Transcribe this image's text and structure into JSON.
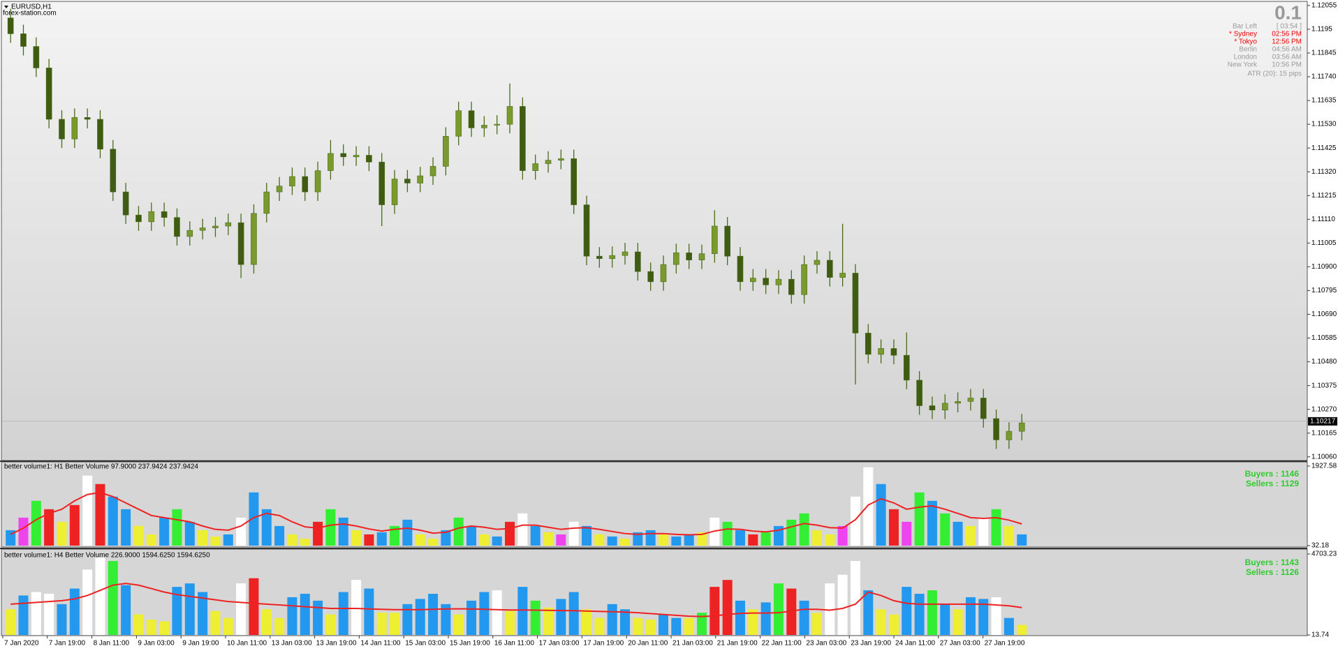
{
  "header": {
    "symbol": "EURUSD,H1",
    "source": "forex-station.com",
    "spread": "0.1",
    "info": [
      [
        "Bar Left",
        "[ 03:54 ]"
      ],
      [
        "* Sydney",
        "02:56 PM"
      ],
      [
        "* Tokyo",
        "12:56 PM"
      ],
      [
        "Berlin",
        "04:56 AM"
      ],
      [
        "London",
        "03:56 AM"
      ],
      [
        "New York",
        "10:56 PM"
      ]
    ],
    "atr": "ATR (20): 15 pips"
  },
  "time_axis": {
    "labels": [
      "7 Jan 2020",
      "7 Jan 19:00",
      "8 Jan 11:00",
      "9 Jan 03:00",
      "9 Jan 19:00",
      "10 Jan 11:00",
      "13 Jan 03:00",
      "13 Jan 19:00",
      "14 Jan 11:00",
      "15 Jan 03:00",
      "15 Jan 19:00",
      "16 Jan 11:00",
      "17 Jan 03:00",
      "17 Jan 19:00",
      "20 Jan 11:00",
      "21 Jan 03:00",
      "21 Jan 19:00",
      "22 Jan 11:00",
      "23 Jan 03:00",
      "23 Jan 19:00",
      "24 Jan 11:00",
      "27 Jan 03:00",
      "27 Jan 19:00"
    ]
  },
  "chart_data": [
    {
      "type": "candlestick",
      "up_color": "#7a9a2e",
      "down_color": "#3f5c12",
      "wick_color": "#4a6a1a",
      "ylim": [
        1.1005,
        1.1207
      ],
      "yticks": [
        1.12055,
        1.1195,
        1.11845,
        {
          "value": 1.1174,
          "label": "1.11740"
        },
        1.11635,
        {
          "value": 1.1153,
          "label": "1.11530"
        },
        1.11425,
        {
          "value": 1.1132,
          "label": "1.11320"
        },
        1.11215,
        {
          "value": 1.1111,
          "label": "1.11110"
        },
        1.11005,
        {
          "value": 1.109,
          "label": "1.10900"
        },
        1.10795,
        {
          "value": 1.1069,
          "label": "1.10690"
        },
        1.10585,
        {
          "value": 1.1048,
          "label": "1.10480"
        },
        1.10375,
        {
          "value": 1.1027,
          "label": "1.10270"
        },
        1.10165,
        {
          "value": 1.1006,
          "label": "1.10060"
        }
      ],
      "current_price": 1.10217,
      "open": [
        1.12,
        1.1193,
        1.11874,
        1.11779,
        1.11552,
        1.11465,
        1.1156,
        1.11552,
        1.1142,
        1.11231,
        1.11129,
        1.11099,
        1.11144,
        1.11118,
        1.11034,
        1.11061,
        1.11072,
        1.1108,
        1.11095,
        1.1091,
        1.11136,
        1.11231,
        1.11257,
        1.11299,
        1.11231,
        1.11325,
        1.11401,
        1.11386,
        1.11393,
        1.11363,
        1.11174,
        1.11288,
        1.1127,
        1.11302,
        1.11344,
        1.11477,
        1.1159,
        1.11514,
        1.11526,
        1.1153,
        1.11609,
        1.11325,
        1.11356,
        1.11371,
        1.11378,
        1.11174,
        1.10947,
        1.10936,
        1.1095,
        1.10966,
        1.10879,
        1.10834,
        1.1091,
        1.10962,
        1.1093,
        1.10958,
        1.1108,
        1.10947,
        1.10834,
        1.1085,
        1.1082,
        1.10845,
        1.10777,
        1.1091,
        1.10929,
        1.10853,
        1.10872,
        1.10607,
        1.10513,
        1.10539,
        1.10509,
        1.10399,
        1.10286,
        1.10267,
        1.10297,
        1.10305,
        1.1032,
        1.10229,
        1.10135,
        1.10173
      ],
      "high": [
        1.1204,
        1.1197,
        1.11914,
        1.11819,
        1.11592,
        1.116,
        1.116,
        1.11592,
        1.1146,
        1.11271,
        1.11169,
        1.11184,
        1.11184,
        1.11158,
        1.11101,
        1.11112,
        1.1112,
        1.11135,
        1.11135,
        1.11176,
        1.11271,
        1.11297,
        1.11339,
        1.11339,
        1.11365,
        1.1146,
        1.11441,
        1.11433,
        1.11433,
        1.11403,
        1.11328,
        1.11328,
        1.11342,
        1.11384,
        1.11517,
        1.1163,
        1.1163,
        1.11566,
        1.1157,
        1.1171,
        1.11649,
        1.11396,
        1.11411,
        1.11418,
        1.11418,
        1.11214,
        1.10987,
        1.1099,
        1.11006,
        1.11006,
        1.10919,
        1.1095,
        1.11002,
        1.11002,
        1.10998,
        1.1115,
        1.1112,
        1.10987,
        1.1089,
        1.1089,
        1.10885,
        1.10885,
        1.1095,
        1.10969,
        1.10969,
        1.1109,
        1.10912,
        1.10647,
        1.10579,
        1.10579,
        1.1061,
        1.10439,
        1.10326,
        1.10337,
        1.10345,
        1.1036,
        1.1036,
        1.10269,
        1.10213,
        1.1025
      ],
      "low": [
        1.1189,
        1.11834,
        1.11739,
        1.11512,
        1.11425,
        1.11425,
        1.11512,
        1.1138,
        1.11191,
        1.11089,
        1.11059,
        1.11059,
        1.11078,
        1.10994,
        1.10994,
        1.11021,
        1.11032,
        1.1104,
        1.1085,
        1.1087,
        1.11096,
        1.11191,
        1.11217,
        1.11191,
        1.11191,
        1.11285,
        1.11346,
        1.11346,
        1.11323,
        1.1108,
        1.11134,
        1.1123,
        1.1123,
        1.11262,
        1.11304,
        1.11437,
        1.11474,
        1.11474,
        1.11486,
        1.1149,
        1.11285,
        1.11285,
        1.11316,
        1.11331,
        1.11134,
        1.10907,
        1.10896,
        1.10896,
        1.1091,
        1.10839,
        1.10794,
        1.10794,
        1.1087,
        1.1089,
        1.1089,
        1.10918,
        1.10907,
        1.10794,
        1.10794,
        1.1078,
        1.1078,
        1.10737,
        1.10737,
        1.1087,
        1.10813,
        1.10813,
        1.1038,
        1.10473,
        1.10473,
        1.10469,
        1.10359,
        1.10246,
        1.10227,
        1.10227,
        1.10257,
        1.10265,
        1.10189,
        1.10095,
        1.10095,
        1.10133
      ],
      "close": [
        1.1193,
        1.11874,
        1.11779,
        1.11552,
        1.11465,
        1.1156,
        1.11552,
        1.1142,
        1.11231,
        1.11129,
        1.11099,
        1.11144,
        1.11118,
        1.11034,
        1.11061,
        1.11072,
        1.1108,
        1.11095,
        1.1091,
        1.11136,
        1.11231,
        1.11257,
        1.11299,
        1.11231,
        1.11325,
        1.11401,
        1.11386,
        1.11393,
        1.11363,
        1.11174,
        1.11288,
        1.1127,
        1.11302,
        1.11344,
        1.11477,
        1.1159,
        1.11514,
        1.11526,
        1.1153,
        1.11609,
        1.11325,
        1.11356,
        1.11371,
        1.11378,
        1.11174,
        1.10947,
        1.10936,
        1.1095,
        1.10966,
        1.10879,
        1.10834,
        1.1091,
        1.10962,
        1.1093,
        1.10958,
        1.1108,
        1.10947,
        1.10834,
        1.1085,
        1.1082,
        1.10845,
        1.10777,
        1.1091,
        1.10929,
        1.10853,
        1.10872,
        1.10607,
        1.10513,
        1.10539,
        1.10509,
        1.10399,
        1.10286,
        1.10267,
        1.10297,
        1.10305,
        1.1032,
        1.10229,
        1.10135,
        1.10173,
        1.1021
      ]
    },
    {
      "type": "bar",
      "title": "better volume1: H1 Better Volume 97.9000 237.9424 237.9424",
      "buyers": "Buyers : 1146",
      "sellers": "Sellers : 1129",
      "ylim": [
        32.18,
        1927.58
      ],
      "yticks": [
        1927.58,
        32.18
      ],
      "ma_color": "#e22",
      "values": [
        400,
        700,
        1100,
        900,
        600,
        1000,
        1700,
        1500,
        1200,
        900,
        500,
        300,
        700,
        900,
        600,
        400,
        250,
        300,
        700,
        1300,
        900,
        500,
        300,
        200,
        600,
        900,
        700,
        400,
        300,
        350,
        500,
        650,
        300,
        200,
        400,
        700,
        500,
        300,
        250,
        600,
        800,
        500,
        350,
        300,
        600,
        500,
        300,
        250,
        200,
        350,
        400,
        300,
        250,
        300,
        350,
        700,
        600,
        400,
        300,
        350,
        500,
        650,
        800,
        400,
        300,
        500,
        1200,
        1900,
        1500,
        900,
        600,
        1300,
        1100,
        800,
        600,
        500,
        700,
        900,
        500,
        300
      ],
      "bar_colors": [
        "#29e",
        "#e4e",
        "#3e3",
        "#e22",
        "#ee3",
        "#e22",
        "#fff",
        "#e22",
        "#29e",
        "#29e",
        "#ee3",
        "#ee3",
        "#29e",
        "#3e3",
        "#29e",
        "#ee3",
        "#ee3",
        "#29e",
        "#fff",
        "#29e",
        "#29e",
        "#29e",
        "#ee3",
        "#ee3",
        "#e22",
        "#3e3",
        "#29e",
        "#ee3",
        "#e22",
        "#29e",
        "#3e3",
        "#29e",
        "#ee3",
        "#ee3",
        "#29e",
        "#3e3",
        "#29e",
        "#ee3",
        "#29e",
        "#e22",
        "#fff",
        "#29e",
        "#ee3",
        "#e4e",
        "#fff",
        "#29e",
        "#ee3",
        "#29e",
        "#ee3",
        "#29e",
        "#29e",
        "#ee3",
        "#29e",
        "#29e",
        "#ee3",
        "#fff",
        "#3e3",
        "#29e",
        "#e22",
        "#3e3",
        "#29e",
        "#3e3",
        "#3e3",
        "#ee3",
        "#ee3",
        "#e4e",
        "#fff",
        "#fff",
        "#29e",
        "#e22",
        "#e4e",
        "#3e3",
        "#29e",
        "#3e3",
        "#29e",
        "#ee3",
        "#fff",
        "#3e3",
        "#ee3",
        "#29e"
      ],
      "ma": [
        300,
        450,
        650,
        800,
        900,
        1100,
        1250,
        1300,
        1200,
        1050,
        900,
        750,
        700,
        650,
        600,
        500,
        420,
        400,
        500,
        700,
        800,
        750,
        600,
        480,
        450,
        520,
        550,
        500,
        430,
        380,
        420,
        450,
        400,
        330,
        350,
        450,
        500,
        470,
        420,
        440,
        520,
        520,
        470,
        420,
        450,
        460,
        420,
        370,
        320,
        300,
        320,
        320,
        300,
        290,
        300,
        380,
        430,
        420,
        380,
        360,
        400,
        480,
        560,
        520,
        460,
        450,
        650,
        1000,
        1150,
        1050,
        900,
        950,
        980,
        900,
        800,
        700,
        680,
        700,
        640,
        550
      ]
    },
    {
      "type": "bar",
      "title": "better volume1: H4 Better Volume 226.9000 1594.6250 1594.6250",
      "buyers": "Buyers : 1143",
      "sellers": "Sellers : 1126",
      "ylim": [
        13.74,
        4703.23
      ],
      "yticks": [
        4703.23,
        13.74
      ],
      "ma_color": "#e22",
      "values": [
        1500,
        2300,
        2500,
        2400,
        1800,
        2700,
        3800,
        4500,
        4300,
        2900,
        1200,
        900,
        800,
        2800,
        3000,
        2500,
        1400,
        1000,
        3000,
        3300,
        1500,
        1000,
        2200,
        2400,
        2000,
        1200,
        2500,
        3200,
        2700,
        1300,
        1300,
        1800,
        2100,
        2400,
        1800,
        1200,
        2000,
        2500,
        2600,
        1400,
        2800,
        2000,
        1600,
        2100,
        2500,
        1500,
        1000,
        1800,
        1500,
        1000,
        900,
        1200,
        1000,
        1000,
        1300,
        2800,
        3200,
        2000,
        1500,
        1900,
        3000,
        2700,
        2000,
        1300,
        3000,
        3500,
        4300,
        2600,
        1500,
        1200,
        2800,
        2400,
        2600,
        1800,
        1500,
        2200,
        2100,
        2200,
        1000,
        600
      ],
      "bar_colors": [
        "#ee3",
        "#29e",
        "#fff",
        "#fff",
        "#29e",
        "#29e",
        "#fff",
        "#fff",
        "#3e3",
        "#29e",
        "#ee3",
        "#ee3",
        "#ee3",
        "#29e",
        "#29e",
        "#29e",
        "#ee3",
        "#ee3",
        "#fff",
        "#e22",
        "#ee3",
        "#ee3",
        "#29e",
        "#29e",
        "#29e",
        "#ee3",
        "#29e",
        "#fff",
        "#29e",
        "#ee3",
        "#ee3",
        "#29e",
        "#29e",
        "#29e",
        "#29e",
        "#ee3",
        "#29e",
        "#29e",
        "#fff",
        "#ee3",
        "#29e",
        "#3e3",
        "#ee3",
        "#29e",
        "#29e",
        "#ee3",
        "#ee3",
        "#29e",
        "#29e",
        "#ee3",
        "#ee3",
        "#29e",
        "#29e",
        "#ee3",
        "#3e3",
        "#e22",
        "#e22",
        "#29e",
        "#ee3",
        "#29e",
        "#3e3",
        "#e22",
        "#29e",
        "#ee3",
        "#fff",
        "#fff",
        "#fff",
        "#29e",
        "#ee3",
        "#ee3",
        "#29e",
        "#29e",
        "#3e3",
        "#29e",
        "#ee3",
        "#29e",
        "#29e",
        "#fff",
        "#29e",
        "#ee3"
      ],
      "ma": [
        1800,
        1850,
        1900,
        1950,
        2000,
        2100,
        2300,
        2600,
        2900,
        3000,
        2900,
        2700,
        2500,
        2350,
        2250,
        2150,
        2050,
        1950,
        1900,
        1850,
        1800,
        1750,
        1700,
        1650,
        1600,
        1550,
        1550,
        1550,
        1520,
        1500,
        1480,
        1480,
        1480,
        1500,
        1520,
        1530,
        1520,
        1500,
        1480,
        1460,
        1460,
        1450,
        1440,
        1430,
        1420,
        1400,
        1380,
        1360,
        1340,
        1300,
        1250,
        1200,
        1150,
        1100,
        1080,
        1120,
        1200,
        1260,
        1280,
        1280,
        1300,
        1400,
        1500,
        1500,
        1450,
        1550,
        1800,
        2500,
        2300,
        2000,
        1850,
        1800,
        1800,
        1800,
        1800,
        1800,
        1800,
        1750,
        1700,
        1600
      ]
    }
  ]
}
